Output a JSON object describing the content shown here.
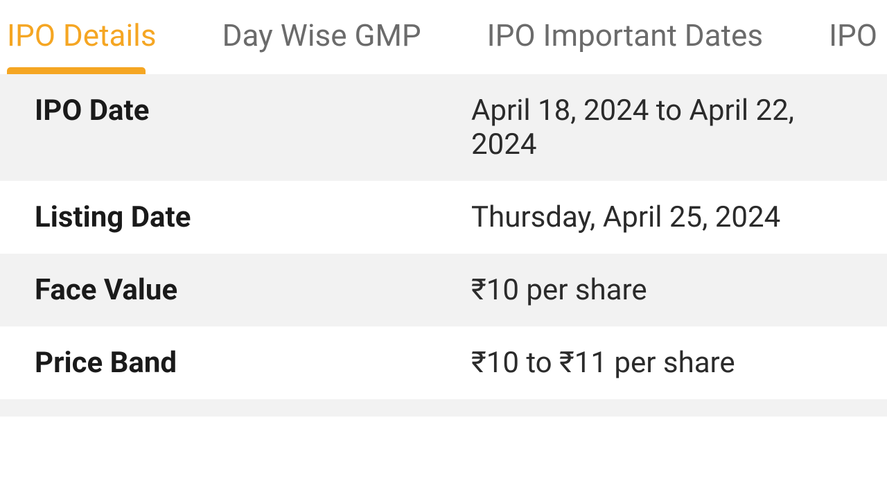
{
  "tabs": [
    {
      "label": "IPO Details",
      "active": true
    },
    {
      "label": "Day Wise GMP",
      "active": false
    },
    {
      "label": "IPO Important Dates",
      "active": false
    },
    {
      "label": "IPO L",
      "active": false
    }
  ],
  "details": [
    {
      "label": "IPO Date",
      "value": "April 18, 2024 to April 22, 2024"
    },
    {
      "label": "Listing Date",
      "value": "Thursday, April 25, 2024"
    },
    {
      "label": "Face Value",
      "value": "₹10 per share"
    },
    {
      "label": "Price Band",
      "value": "₹10 to ₹11 per share"
    }
  ],
  "colors": {
    "accent": "#f5a623",
    "tab_inactive": "#6b6b6b",
    "row_odd_bg": "#f2f2f2",
    "row_even_bg": "#ffffff",
    "label_text": "#1a1a1a",
    "value_text": "#2b2b2b"
  }
}
